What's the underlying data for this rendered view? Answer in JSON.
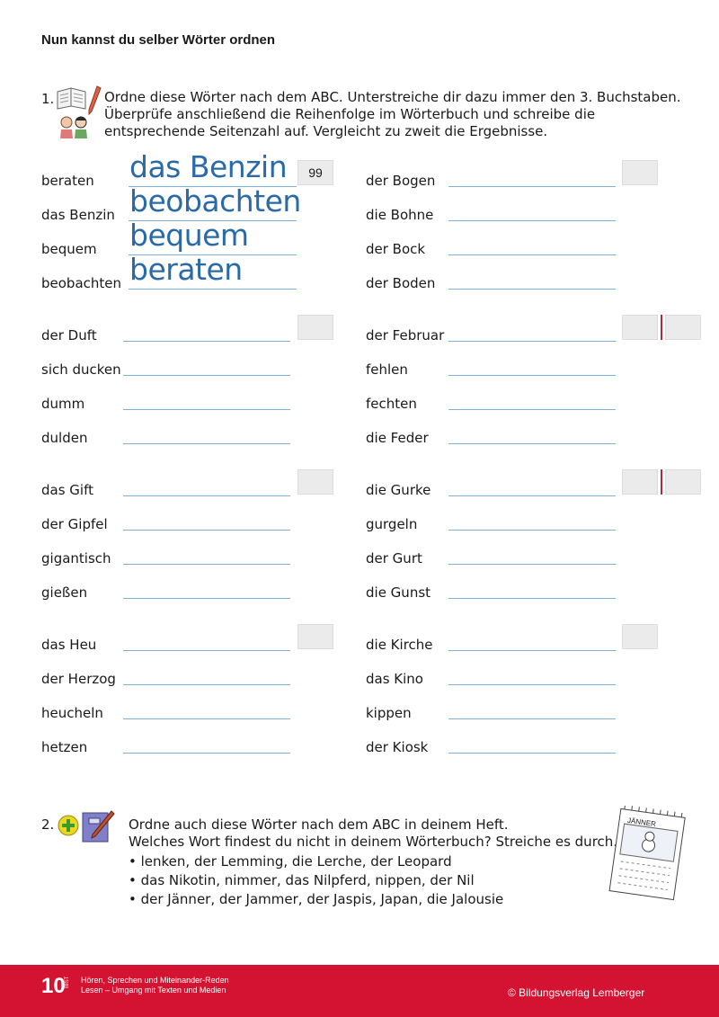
{
  "title": "Nun kannst du selber Wörter ordnen",
  "exercise1": {
    "number": "1.",
    "icons": [
      "book-pencil-icon",
      "two-children-icon"
    ],
    "instructions": [
      "Ordne diese Wörter nach dem ABC. Unterstreiche dir dazu immer den 3. Buchstaben.",
      "Überprüfe anschließend die Reihenfolge im Wörterbuch und schreibe die",
      "entsprechende Seitenzahl auf. Vergleicht zu zweit die Ergebnisse."
    ],
    "groups": [
      {
        "column": "left",
        "words": [
          "beraten",
          "das Benzin",
          "bequem",
          "beobachten"
        ],
        "answers": [
          "das Benzin",
          "beobachten",
          "bequem",
          "beraten"
        ],
        "page": "99",
        "split_box": false
      },
      {
        "column": "right",
        "words": [
          "der Bogen",
          "die Bohne",
          "der Bock",
          "der Boden"
        ],
        "answers": [],
        "page": "",
        "split_box": false
      },
      {
        "column": "left",
        "words": [
          "der Duft",
          "sich ducken",
          "dumm",
          "dulden"
        ],
        "answers": [],
        "page": "",
        "split_box": false
      },
      {
        "column": "right",
        "words": [
          "der Februar",
          "fehlen",
          "fechten",
          "die Feder"
        ],
        "answers": [],
        "page": "",
        "split_box": true
      },
      {
        "column": "left",
        "words": [
          "das Gift",
          "der Gipfel",
          "gigantisch",
          "gießen"
        ],
        "answers": [],
        "page": "",
        "split_box": false
      },
      {
        "column": "right",
        "words": [
          "die Gurke",
          "gurgeln",
          "der Gurt",
          "die Gunst"
        ],
        "answers": [],
        "page": "",
        "split_box": true
      },
      {
        "column": "left",
        "words": [
          "das Heu",
          "der Herzog",
          "heucheln",
          "hetzen"
        ],
        "answers": [],
        "page": "",
        "split_box": false
      },
      {
        "column": "right",
        "words": [
          "die Kirche",
          "das Kino",
          "kippen",
          "der Kiosk"
        ],
        "answers": [],
        "page": "",
        "split_box": false
      }
    ]
  },
  "exercise2": {
    "number": "2.",
    "icons": [
      "plus-icon",
      "notebook-pencil-icon",
      "calendar-icon"
    ],
    "instructions": [
      "Ordne auch diese Wörter nach dem ABC in deinem Heft.",
      "Welches Wort findest du nicht in deinem Wörterbuch? Streiche es durch."
    ],
    "bullets": [
      "lenken, der Lemming, die Lerche, der Leopard",
      "das Nikotin, nimmer, das Nilpferd, nippen, der Nil",
      "der Jänner, der Jammer, der Jaspis, Japan, die Jalousie"
    ],
    "calendar_label": "JÄNNER"
  },
  "footer": {
    "page_number": "10",
    "bist_label": "BIST",
    "topics": [
      "Hören, Sprechen und Miteinander-Reden",
      "Lesen – Umgang mit Texten und Medien"
    ],
    "copyright": "© Bildungsverlag Lemberger",
    "color": "#d31331"
  }
}
